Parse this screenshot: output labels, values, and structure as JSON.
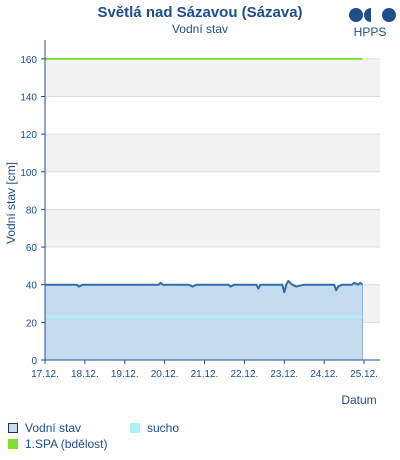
{
  "chart_data": {
    "type": "line",
    "title": "Světlá nad Sázavou (Sázava)",
    "subtitle": "Vodní stav",
    "xlabel": "Datum",
    "ylabel": "Vodní stav [cm]",
    "ylim": [
      0,
      170
    ],
    "yticks": [
      0,
      20,
      40,
      60,
      80,
      100,
      120,
      140,
      160
    ],
    "xticks": [
      "17.12.",
      "18.12.",
      "19.12.",
      "20.12.",
      "21.12.",
      "22.12.",
      "23.12.",
      "24.12.",
      "25.12."
    ],
    "xlim_days": [
      0,
      8.4
    ],
    "grid": true,
    "series": [
      {
        "name": "Vodní stav",
        "type": "area",
        "color": "#2e6fa7",
        "fill": "#c5dcf0",
        "x_days": [
          0,
          0.8,
          0.85,
          0.95,
          1.0,
          1.4,
          2.85,
          2.9,
          2.95,
          3.05,
          3.6,
          3.7,
          3.8,
          4.6,
          4.65,
          4.75,
          5.3,
          5.35,
          5.4,
          5.5,
          5.95,
          6.0,
          6.05,
          6.1,
          6.2,
          6.3,
          6.5,
          7.0,
          7.25,
          7.3,
          7.35,
          7.45,
          7.7,
          7.75,
          7.85,
          7.9,
          7.96
        ],
        "y": [
          40,
          40,
          39,
          40,
          40,
          40,
          40,
          41,
          40,
          40,
          40,
          39,
          40,
          40,
          39,
          40,
          40,
          38,
          40,
          40,
          40,
          36,
          40,
          42,
          40,
          39,
          40,
          40,
          40,
          37,
          39,
          40,
          40,
          41,
          40,
          41,
          40
        ]
      },
      {
        "name": "sucho",
        "type": "threshold",
        "value": 23,
        "color": "#aaf3f7"
      },
      {
        "name": "1.SPA (bdělost)",
        "type": "threshold",
        "value": 160,
        "color": "#7ee02a"
      }
    ]
  },
  "logo": {
    "text": "HPPS",
    "icon": "hpps-logo-icon",
    "color": "#1f4e8c"
  },
  "legend": {
    "items": [
      {
        "label": "Vodní stav",
        "swatch": "water-level-swatch"
      },
      {
        "label": "sucho",
        "swatch": "drought-swatch"
      },
      {
        "label": "1.SPA (bdělost)",
        "swatch": "spa1-swatch"
      }
    ]
  }
}
